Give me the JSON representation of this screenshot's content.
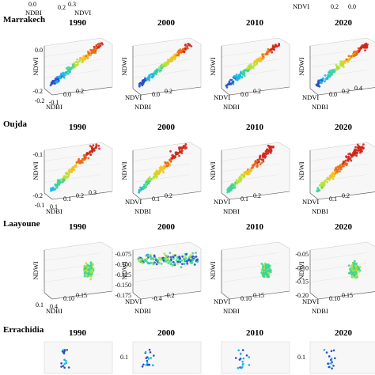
{
  "chart_data": {
    "type": "scatter",
    "kind": "3d-scatter small multiples",
    "years": [
      "1990",
      "2000",
      "2010",
      "2020"
    ],
    "colormap": [
      "#2b4fc9",
      "#18b8e8",
      "#3ad59a",
      "#b8e23a",
      "#f5c21c",
      "#ee6a14",
      "#d2261a"
    ],
    "top_fragment": {
      "ticks_left": [
        "0.0",
        "0.2",
        "0.3"
      ],
      "ticks_right": [
        "0.2",
        "0.0"
      ],
      "labels": [
        "NDBI",
        "NDVI",
        "NDBI",
        "NDVI"
      ]
    },
    "rows": [
      {
        "city": "Marrakech",
        "axes": {
          "x": "NDBI",
          "y": "NDVI",
          "z": "NDWI"
        },
        "z_ticks": [
          "0.0",
          "-0.2"
        ],
        "x_ticks": [
          "-0.2",
          "-0.1"
        ],
        "y_ticks_by_panel": [
          [
            "0.0",
            "0.2"
          ],
          [
            "0.0",
            "0.2"
          ],
          [
            "0.0",
            "0.2"
          ],
          [
            "0.0",
            "0.2",
            "0.4"
          ]
        ],
        "data_hint": "points from blue (low NDBI, low NDWI) to red (high NDVI), elongated diagonal cloud"
      },
      {
        "city": "Oujda",
        "axes": {
          "x": "NDBI",
          "y": "NDVI",
          "z": "NDWI"
        },
        "z_ticks": [
          "-0.1",
          "-0.2"
        ],
        "x_ticks": [
          "-0.1",
          "0.1"
        ],
        "y_ticks_by_panel": [
          [
            "0.1",
            "0.2",
            "0.3"
          ],
          [
            "0.1",
            "0.2"
          ],
          [
            "0.1",
            "0.2"
          ],
          [
            "0.1",
            "0.2"
          ]
        ],
        "data_hint": "cone-shaped cloud, red/orange at top rising to high NDVI"
      },
      {
        "city": "Laayoune",
        "axes": {
          "x": "NDBI",
          "y": "NDVI",
          "z": "NDWI"
        },
        "z_ticks_by_panel": [
          [],
          [
            "-0.075",
            "-0.100",
            "-0.125",
            "-0.150",
            "-0.175"
          ],
          [],
          [
            "-0.05",
            "-0.10",
            "-0.15",
            "-0.20"
          ]
        ],
        "x_ticks": [
          "0.1",
          "0.4"
        ],
        "y_ticks_by_panel": [
          [
            "0.10",
            "0.15"
          ],
          [
            "-0.4",
            "-0.2"
          ],
          [
            "0.10",
            "0.15"
          ],
          [
            "0.10",
            "0.15"
          ]
        ],
        "data_hint": "mostly green/cyan compact clusters, year 2000 spread with blue points"
      },
      {
        "city": "Errachidia",
        "axes": {
          "x": "NDBI",
          "y": "NDVI",
          "z": "NDWI"
        },
        "z_ticks_by_panel": [
          [],
          [
            "0.1"
          ],
          [],
          [
            "0.1"
          ]
        ],
        "data_hint": "sparse blue and cyan points"
      }
    ]
  }
}
